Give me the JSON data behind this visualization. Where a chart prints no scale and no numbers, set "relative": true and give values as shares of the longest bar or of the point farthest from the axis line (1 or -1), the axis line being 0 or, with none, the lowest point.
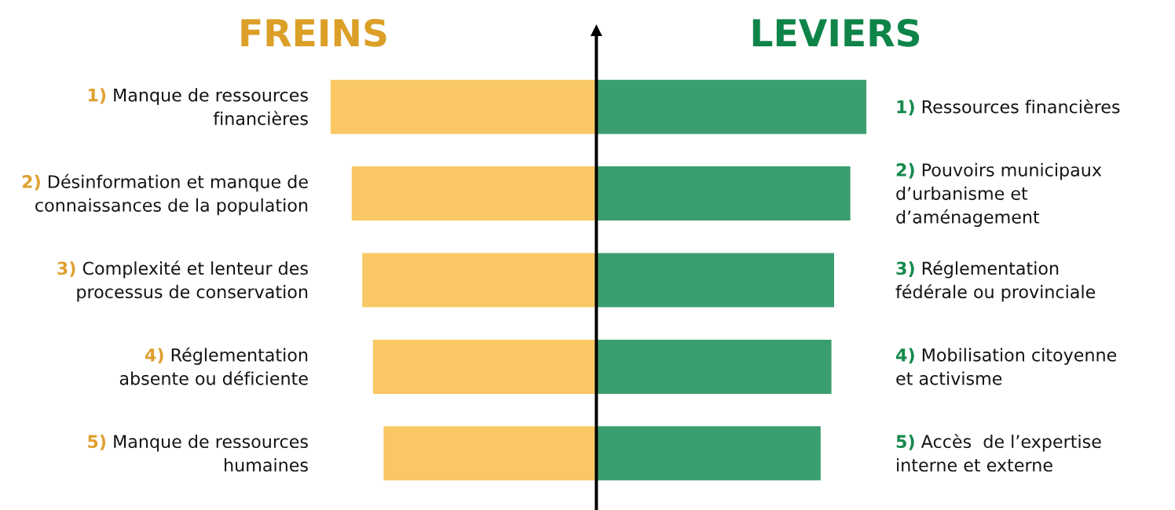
{
  "chart_data": [
    {
      "type": "bar",
      "orientation": "horizontal",
      "relative": true,
      "title": "FREINS",
      "color": "#f9c763",
      "categories": [
        "1) Manque de ressources\nfinancières",
        "2) Désinformation et manque de\nconnaissances de la population",
        "3) Complexité et lenteur des\nprocessus de conservation",
        "4) Réglementation\nabsente ou déficiente",
        "5) Manque de ressources\nhumaines"
      ],
      "values": [
        -1,
        -0.92,
        -0.88,
        -0.84,
        -0.8
      ]
    },
    {
      "type": "bar",
      "orientation": "horizontal",
      "relative": true,
      "title": "LEVIERS",
      "color": "#3b9e6e",
      "categories": [
        "1) Ressources financières",
        "2) Pouvoirs municipaux\nd’urbanisme et\nd’aménagement",
        "3) Réglementation\nfédérale ou provinciale",
        "4) Mobilisation citoyenne\net activisme",
        "5) Accès  de l’expertise\ninterne et externe"
      ],
      "values": [
        1,
        0.94,
        0.88,
        0.87,
        0.83
      ]
    }
  ]
}
